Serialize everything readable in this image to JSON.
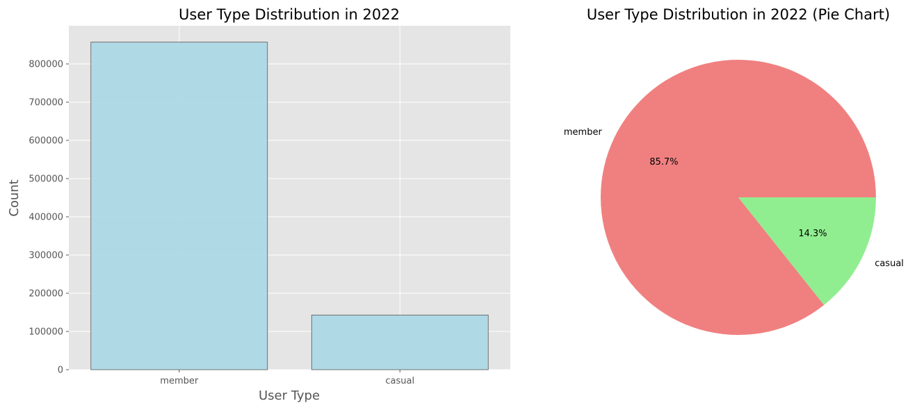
{
  "chart_data": [
    {
      "type": "bar",
      "title": "User Type Distribution in 2022",
      "xlabel": "User Type",
      "ylabel": "Count",
      "categories": [
        "member",
        "casual"
      ],
      "values": [
        857000,
        143000
      ],
      "ylim": [
        0,
        900000
      ],
      "yticks": [
        0,
        100000,
        200000,
        300000,
        400000,
        500000,
        600000,
        700000,
        800000
      ],
      "ytick_labels": [
        "0",
        "100000",
        "200000",
        "300000",
        "400000",
        "500000",
        "600000",
        "700000",
        "800000"
      ],
      "grid": true,
      "bar_color": "#add8e6",
      "bar_edge_color": "#555555",
      "background_color": "#e5e5e5"
    },
    {
      "type": "pie",
      "title": "User Type Distribution in 2022 (Pie Chart)",
      "labels": [
        "member",
        "casual"
      ],
      "values": [
        85.7,
        14.3
      ],
      "pct_labels": [
        "85.7%",
        "14.3%"
      ],
      "colors": [
        "#f08080",
        "#90ee90"
      ]
    }
  ]
}
